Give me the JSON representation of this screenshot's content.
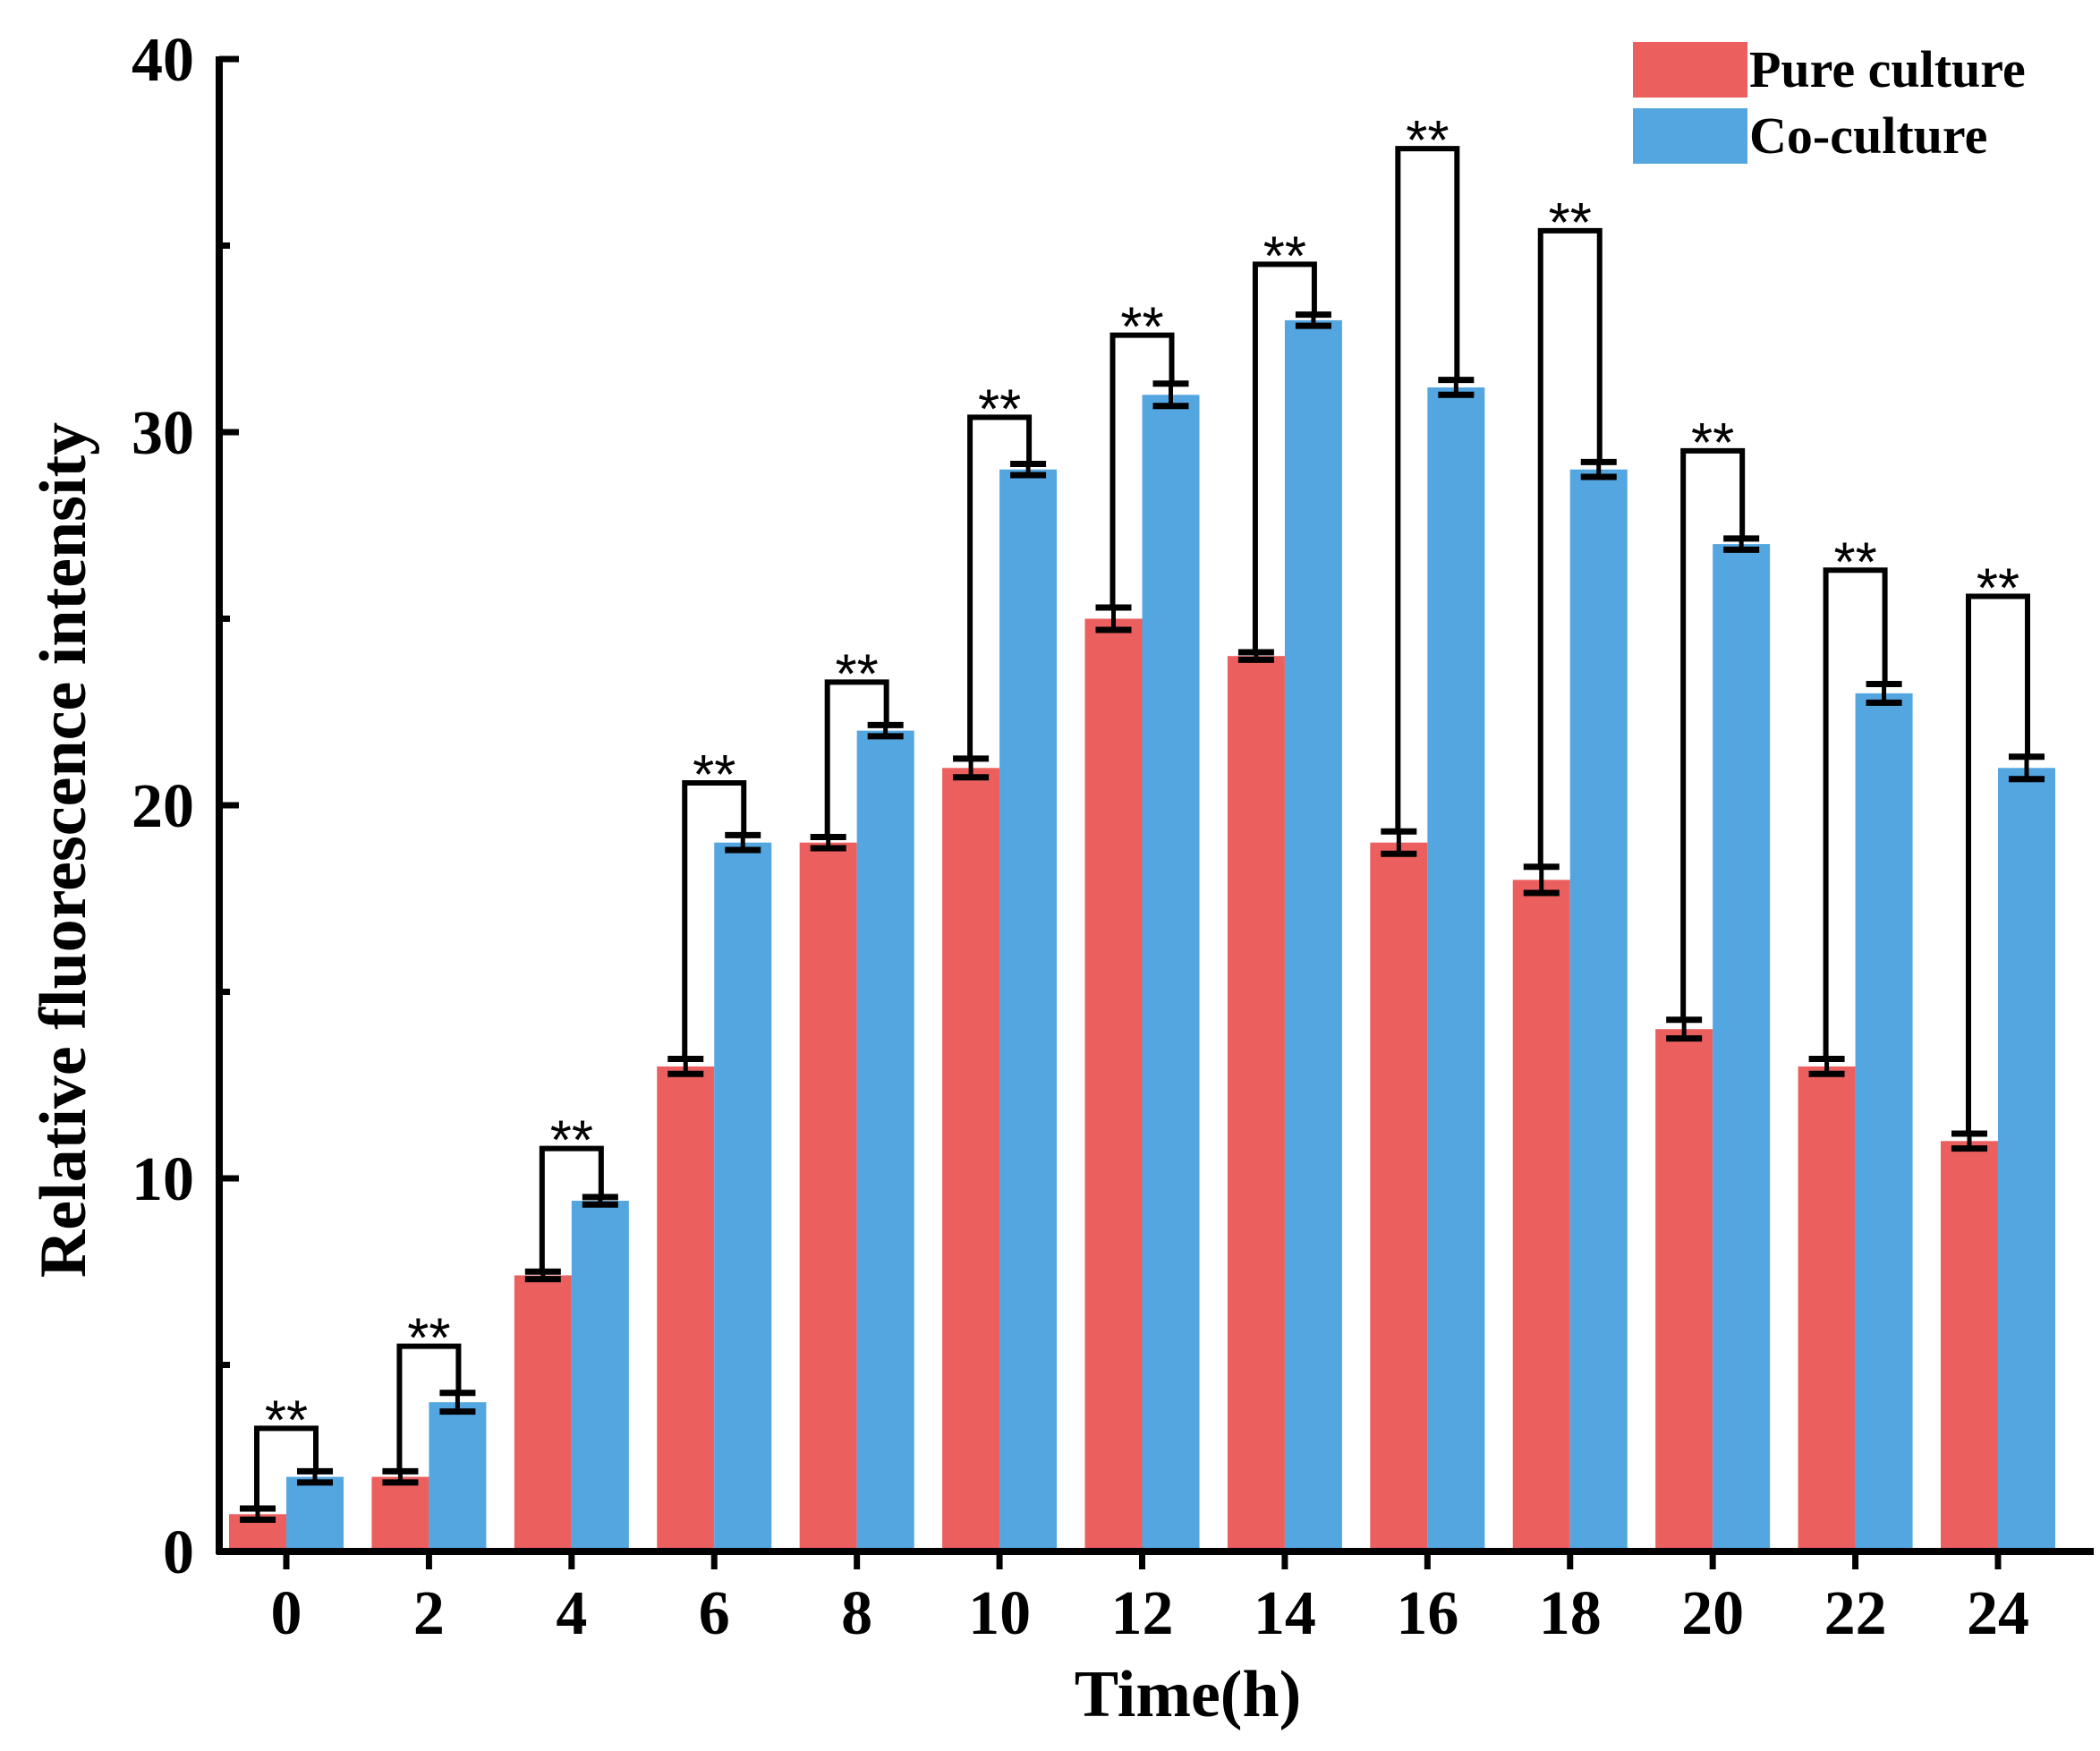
{
  "chart_data": {
    "type": "bar",
    "title": "",
    "xlabel": "Time(h)",
    "ylabel": "Relative fluorescence intensity",
    "ylim": [
      0,
      40
    ],
    "yticks": [
      0,
      10,
      20,
      30,
      40
    ],
    "y_minor_step": 5,
    "categories": [
      "0",
      "2",
      "4",
      "6",
      "8",
      "10",
      "12",
      "14",
      "16",
      "18",
      "20",
      "22",
      "24"
    ],
    "series": [
      {
        "name": "Pure culture",
        "color": "#EB5F5F",
        "values": [
          1,
          2,
          7.4,
          13,
          19,
          21,
          25,
          24,
          19,
          18,
          14,
          13,
          11
        ],
        "errors": [
          0.15,
          0.15,
          0.1,
          0.2,
          0.15,
          0.25,
          0.3,
          0.1,
          0.3,
          0.35,
          0.25,
          0.2,
          0.2
        ]
      },
      {
        "name": "Co-culture",
        "color": "#53A6E0",
        "values": [
          2,
          4,
          9.4,
          19,
          22,
          29,
          31,
          33,
          31.2,
          29,
          27,
          23,
          21
        ],
        "errors": [
          0.15,
          0.25,
          0.1,
          0.2,
          0.15,
          0.15,
          0.3,
          0.15,
          0.2,
          0.2,
          0.15,
          0.25,
          0.3
        ]
      }
    ],
    "significance": {
      "label": "**",
      "bracket_tops": [
        3.3,
        5.5,
        10.8,
        20.6,
        23.3,
        30.4,
        32.6,
        34.5,
        37.6,
        35.4,
        29.5,
        26.3,
        25.6
      ]
    },
    "legend_position": "top-right"
  }
}
